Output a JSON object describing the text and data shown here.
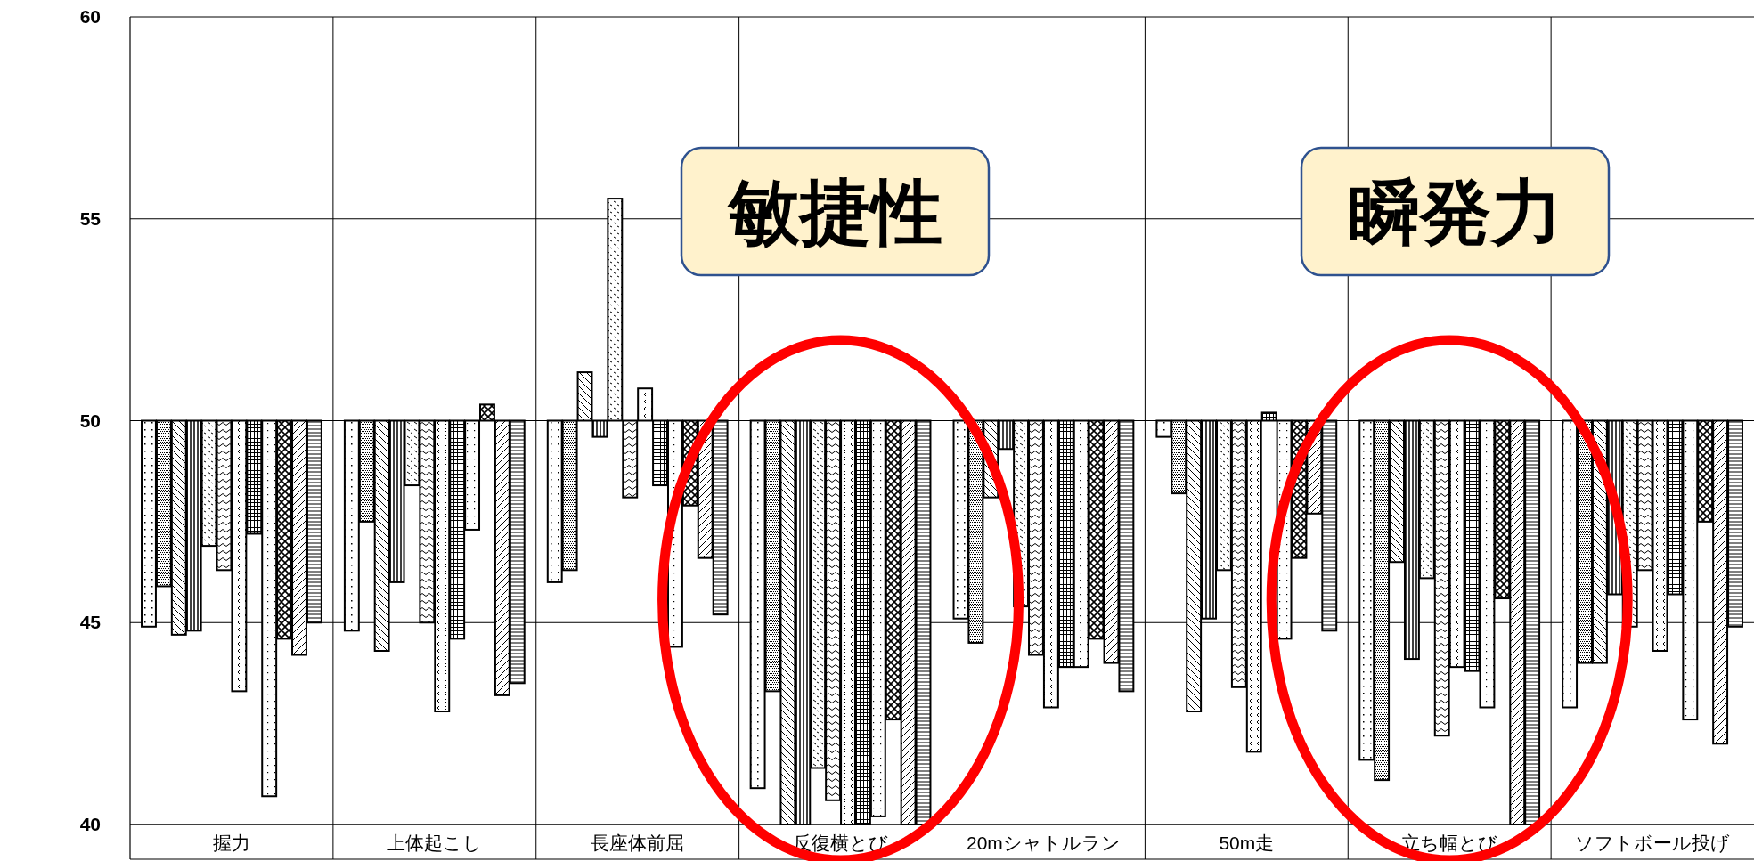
{
  "chart_data": {
    "type": "bar",
    "categories": [
      "握力",
      "上体起こし",
      "長座体前屈",
      "反復横とび",
      "20mシャトルラン",
      "50m走",
      "立ち幅とび",
      "ソフトボール投げ"
    ],
    "series": [
      {
        "color": "#000000",
        "base": [
          50,
          50,
          50,
          50,
          50,
          50,
          50,
          50
        ],
        "values": [
          -5.1,
          -5.2,
          -4.0,
          -9.1,
          -4.9,
          -0.4,
          -8.4,
          -7.1
        ]
      },
      {
        "color": "#000000",
        "base": [
          50,
          50,
          50,
          50,
          50,
          50,
          50,
          50
        ],
        "values": [
          -4.1,
          -2.5,
          -3.7,
          -6.7,
          -5.5,
          -1.8,
          -8.9,
          -6.0
        ]
      },
      {
        "color": "#000000",
        "base": [
          50,
          50,
          50,
          50,
          50,
          50,
          50,
          50
        ],
        "values": [
          -5.3,
          -5.7,
          1.2,
          -10,
          -1.9,
          -7.2,
          -3.5,
          -6.0
        ]
      },
      {
        "color": "#000000",
        "base": [
          50,
          50,
          50,
          50,
          50,
          50,
          50,
          50
        ],
        "values": [
          -5.2,
          -4.0,
          -0.4,
          -10,
          -0.7,
          -4.9,
          -5.9,
          -4.3
        ]
      },
      {
        "color": "#000000",
        "base": [
          50,
          50,
          50,
          50,
          50,
          50,
          50,
          50
        ],
        "values": [
          -3.1,
          -1.6,
          5.5,
          -8.6,
          -4.6,
          -3.7,
          -3.9,
          -5.1
        ]
      },
      {
        "color": "#000000",
        "base": [
          50,
          50,
          50,
          50,
          50,
          50,
          50,
          50
        ],
        "values": [
          -3.7,
          -5.0,
          -1.9,
          -9.4,
          -5.8,
          -6.6,
          -7.8,
          -3.7
        ]
      },
      {
        "color": "#000000",
        "base": [
          50,
          50,
          50,
          50,
          50,
          50,
          50,
          50
        ],
        "values": [
          -6.7,
          -7.2,
          0.8,
          -10,
          -7.1,
          -8.2,
          -6.1,
          -5.7
        ]
      },
      {
        "color": "#000000",
        "base": [
          50,
          50,
          50,
          50,
          50,
          50,
          50,
          50
        ],
        "values": [
          -2.8,
          -5.4,
          -1.6,
          -10,
          -6.1,
          0.2,
          -6.2,
          -4.3
        ]
      },
      {
        "color": "#000000",
        "base": [
          50,
          50,
          50,
          50,
          50,
          50,
          50,
          50
        ],
        "values": [
          -9.3,
          -2.7,
          -5.6,
          -9.8,
          -6.1,
          -5.4,
          -7.1,
          -7.4
        ]
      },
      {
        "color": "#000000",
        "base": [
          50,
          50,
          50,
          50,
          50,
          50,
          50,
          50
        ],
        "values": [
          -5.4,
          0.4,
          -2.1,
          -7.4,
          -5.4,
          -3.4,
          -4.4,
          -2.5
        ]
      },
      {
        "color": "#000000",
        "base": [
          50,
          50,
          50,
          50,
          50,
          50,
          50,
          50
        ],
        "values": [
          -5.8,
          -6.8,
          -3.4,
          -10,
          -6.0,
          -2.3,
          -10,
          -8.0
        ]
      },
      {
        "color": "#000000",
        "base": [
          50,
          50,
          50,
          50,
          50,
          50,
          50,
          50
        ],
        "values": [
          -5.0,
          -6.5,
          -4.8,
          -10,
          -6.7,
          -5.2,
          -10,
          -5.1
        ]
      }
    ],
    "ylim": [
      40,
      60
    ],
    "yticks": [
      40,
      45,
      50,
      55,
      60
    ],
    "grid": true,
    "annotations": [
      "敏捷性",
      "瞬発力"
    ]
  }
}
